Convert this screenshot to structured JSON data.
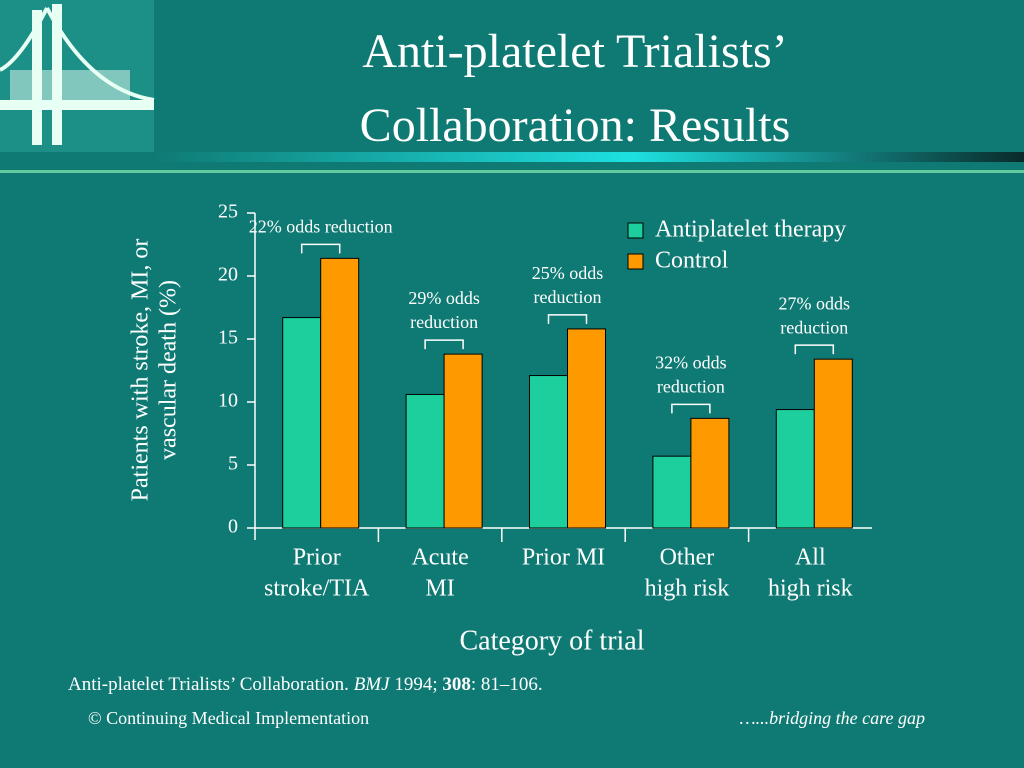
{
  "chart_data": {
    "type": "bar",
    "title": [
      "Anti-platelet Trialists’",
      "Collaboration: Results"
    ],
    "y_label": [
      "Patients with stroke, MI, or",
      "vascular death (%)"
    ],
    "x_label": "Category of trial",
    "categories": [
      [
        "Prior",
        "stroke/TIA"
      ],
      [
        "Acute",
        "MI"
      ],
      [
        "Prior MI"
      ],
      [
        "Other",
        "high risk"
      ],
      [
        "All",
        "high risk"
      ]
    ],
    "series": [
      {
        "name": "Antiplatelet therapy",
        "color": "#1dcf9c",
        "values": [
          16.7,
          10.6,
          12.1,
          5.7,
          9.4
        ]
      },
      {
        "name": "Control",
        "color": "#ff9900",
        "values": [
          21.4,
          13.8,
          15.8,
          8.7,
          13.4
        ]
      }
    ],
    "annotations": [
      [
        "22% odds reduction"
      ],
      [
        "29% odds",
        "reduction"
      ],
      [
        "25% odds",
        "reduction"
      ],
      [
        "32% odds",
        "reduction"
      ],
      [
        "27% odds",
        "reduction"
      ]
    ],
    "ylim": [
      0,
      25
    ],
    "yticks": [
      0,
      5,
      10,
      15,
      20,
      25
    ],
    "legend": "top-right",
    "citation": [
      "Anti-platelet Trialists’ Collaboration. ",
      "BMJ",
      " 1994; ",
      "308",
      ": 81–106."
    ],
    "footer_left": "© Continuing Medical Implementation",
    "footer_right": "…...bridging the care gap"
  }
}
